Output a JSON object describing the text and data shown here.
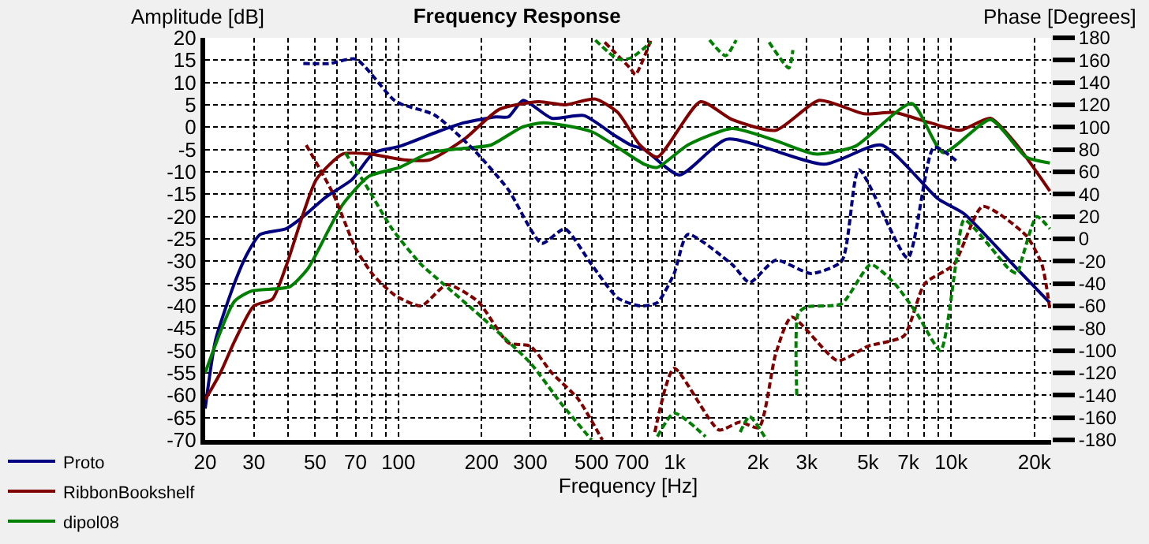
{
  "chart_data": {
    "type": "line",
    "title": "Frequency Response",
    "xlabel": "Frequency [Hz]",
    "ylabel": "Amplitude [dB]",
    "y2label": "Phase [Degrees]",
    "log": "x",
    "grid": true,
    "legend": "bottom left",
    "line_style": "solid",
    "xlim": [
      20,
      23000
    ],
    "xticks": [
      20,
      30,
      {
        "value": 40,
        "label": null
      },
      50,
      {
        "value": 60,
        "label": null
      },
      70,
      {
        "value": 80,
        "label": null
      },
      {
        "value": 90,
        "label": null
      },
      100,
      200,
      300,
      {
        "value": 400,
        "label": null
      },
      500,
      {
        "value": 600,
        "label": null
      },
      700,
      {
        "value": 800,
        "label": null
      },
      {
        "value": 900,
        "label": null
      },
      {
        "value": 1000,
        "label": "1k"
      },
      {
        "value": 2000,
        "label": "2k"
      },
      {
        "value": 3000,
        "label": "3k"
      },
      {
        "value": 4000,
        "label": null
      },
      {
        "value": 5000,
        "label": "5k"
      },
      {
        "value": 6000,
        "label": null
      },
      {
        "value": 7000,
        "label": "7k"
      },
      {
        "value": 8000,
        "label": null
      },
      {
        "value": 9000,
        "label": null
      },
      {
        "value": 10000,
        "label": "10k"
      },
      {
        "value": 20000,
        "label": "20k"
      }
    ],
    "ylim": [
      -70,
      20
    ],
    "yticks": [
      -70,
      -65,
      -60,
      -55,
      -50,
      -45,
      -40,
      -35,
      -30,
      -25,
      -20,
      -15,
      -10,
      -5,
      0,
      5,
      10,
      15,
      20
    ],
    "y2lim": [
      -180,
      180
    ],
    "y2ticks": [
      -180,
      -160,
      -140,
      -120,
      -100,
      -80,
      -60,
      -40,
      -20,
      0,
      20,
      40,
      60,
      80,
      100,
      120,
      140,
      160,
      180
    ],
    "series": [
      {
        "name": "Proto",
        "color": "#000080",
        "x": [
          20,
          21.8,
          25.5,
          28.4,
          31.6,
          39.3,
          45.3,
          54.5,
          68,
          81.5,
          101,
          139,
          173,
          226,
          250,
          283,
          359,
          470,
          601,
          694,
          776,
          1039,
          1543,
          3479,
          5592,
          8950,
          11150,
          17302,
          22760
        ],
        "values": [
          -63,
          -47.7,
          -35,
          -28.3,
          -24,
          -22.7,
          -20,
          -15.7,
          -11.7,
          -5.7,
          -4.3,
          -1,
          1,
          2.3,
          2.3,
          6,
          2,
          2.6,
          -1.7,
          -4,
          -5,
          -10.7,
          -2.7,
          -8.3,
          -4,
          -16,
          -19.4,
          -31.7,
          -39.3
        ]
      },
      {
        "name": "RibbonBookshelf",
        "color": "#800000",
        "x": [
          20,
          22.7,
          25.5,
          30,
          35,
          39.3,
          50.5,
          62.9,
          78.2,
          105,
          130,
          173,
          232,
          322,
          400,
          516,
          622,
          748,
          865,
          1239,
          1613,
          2318,
          3331,
          4843,
          6240,
          8381,
          10787,
          13883,
          17302,
          22760
        ],
        "values": [
          -61,
          -55,
          -48,
          -40,
          -38.5,
          -31,
          -11.7,
          -6,
          -6,
          -7.3,
          -7.3,
          -2.7,
          4,
          5.7,
          5,
          6.3,
          3.3,
          -4,
          -6.7,
          5.7,
          1.7,
          -0.7,
          6,
          3,
          3.3,
          1,
          -0.7,
          2,
          -4,
          -14.3
        ]
      },
      {
        "name": "dipol08",
        "color": "#008000",
        "x": [
          20,
          25.5,
          29.3,
          40.5,
          47,
          50.5,
          62.9,
          78.2,
          101,
          130,
          173,
          216,
          280,
          334,
          500,
          776,
          865,
          1114,
          1613,
          2318,
          3221,
          4486,
          7200,
          9353,
          13883,
          18677,
          22760
        ],
        "values": [
          -55,
          -39,
          -36.7,
          -35.7,
          -31.7,
          -28.3,
          -17.3,
          -11,
          -9,
          -5.7,
          -4.7,
          -4,
          0,
          1,
          -1,
          -8.3,
          -9,
          -4,
          -0.3,
          -3,
          -6,
          -4.3,
          5.3,
          -5.7,
          1.7,
          -6.7,
          -8
        ]
      },
      {
        "color": "#000080",
        "axis": "y2",
        "line_style": "dashed",
        "x": [
          45.3,
          56.3,
          70.2,
          97.9,
          135,
          187,
          250,
          330,
          400,
          500,
          622,
          748,
          865,
          995,
          1114,
          1613,
          1865,
          2318,
          3114,
          4016,
          4636,
          6964,
          8660,
          10553
        ],
        "values": [
          157,
          157,
          161,
          123,
          111,
          80,
          44,
          -4,
          9,
          -23,
          -53,
          -60,
          -57,
          -31,
          4,
          -23,
          -39,
          -19,
          -31,
          -20,
          62,
          -17,
          82,
          69
        ]
      },
      {
        "color": "#800000",
        "axis": "y2",
        "line_style": "dashed",
        "x": [
          46.4,
          58.2,
          70.2,
          81.5,
          97.9,
          121,
          150,
          194,
          250,
          300,
          359,
          446,
          547,
          552,
          558,
          694,
          720,
          820,
          830,
          847,
          995,
          1444,
          1725,
          2016,
          2318,
          2645,
          3884,
          5007,
          6734,
          8025,
          10211,
          12994,
          18677,
          21300,
          22760
        ],
        "values": [
          84,
          40,
          -9,
          -33,
          -51,
          -60,
          -41,
          -56,
          -93,
          -96,
          -120,
          -143,
          -180,
          null,
          176,
          152,
          147,
          178,
          null,
          -173,
          -116,
          -171,
          -164,
          -169,
          -103,
          -70,
          -109,
          -96,
          -87,
          -40,
          -23,
          29,
          3,
          -23,
          -63
        ]
      },
      {
        "color": "#008000",
        "axis": "y2",
        "line_style": "dashed",
        "x": [
          64.3,
          75.9,
          94.9,
          121,
          145,
          202,
          300,
          387,
          500,
          505,
          516,
          622,
          694,
          820,
          840,
          865,
          995,
          1292,
          1310,
          1336,
          1527,
          1668,
          1700,
          1725,
          1865,
          2149,
          2170,
          2195,
          2587,
          2675,
          2720,
          2763,
          2793,
          2982,
          4016,
          5117,
          6240,
          7521,
          9150,
          10438,
          11150,
          16204,
          17302,
          18270,
          20400,
          22760
        ],
        "values": [
          77,
          49,
          9,
          -23,
          -40,
          -71,
          -111,
          -147,
          -180,
          null,
          178,
          161,
          162,
          176,
          null,
          -177,
          -156,
          -177,
          null,
          178,
          164,
          178,
          null,
          -173,
          -159,
          -180,
          null,
          176,
          153,
          169,
          null,
          -140,
          -67,
          -61,
          -58,
          -23,
          -40,
          -67,
          -100,
          -20,
          17,
          -27,
          -31,
          -13,
          20,
          9
        ]
      }
    ]
  }
}
